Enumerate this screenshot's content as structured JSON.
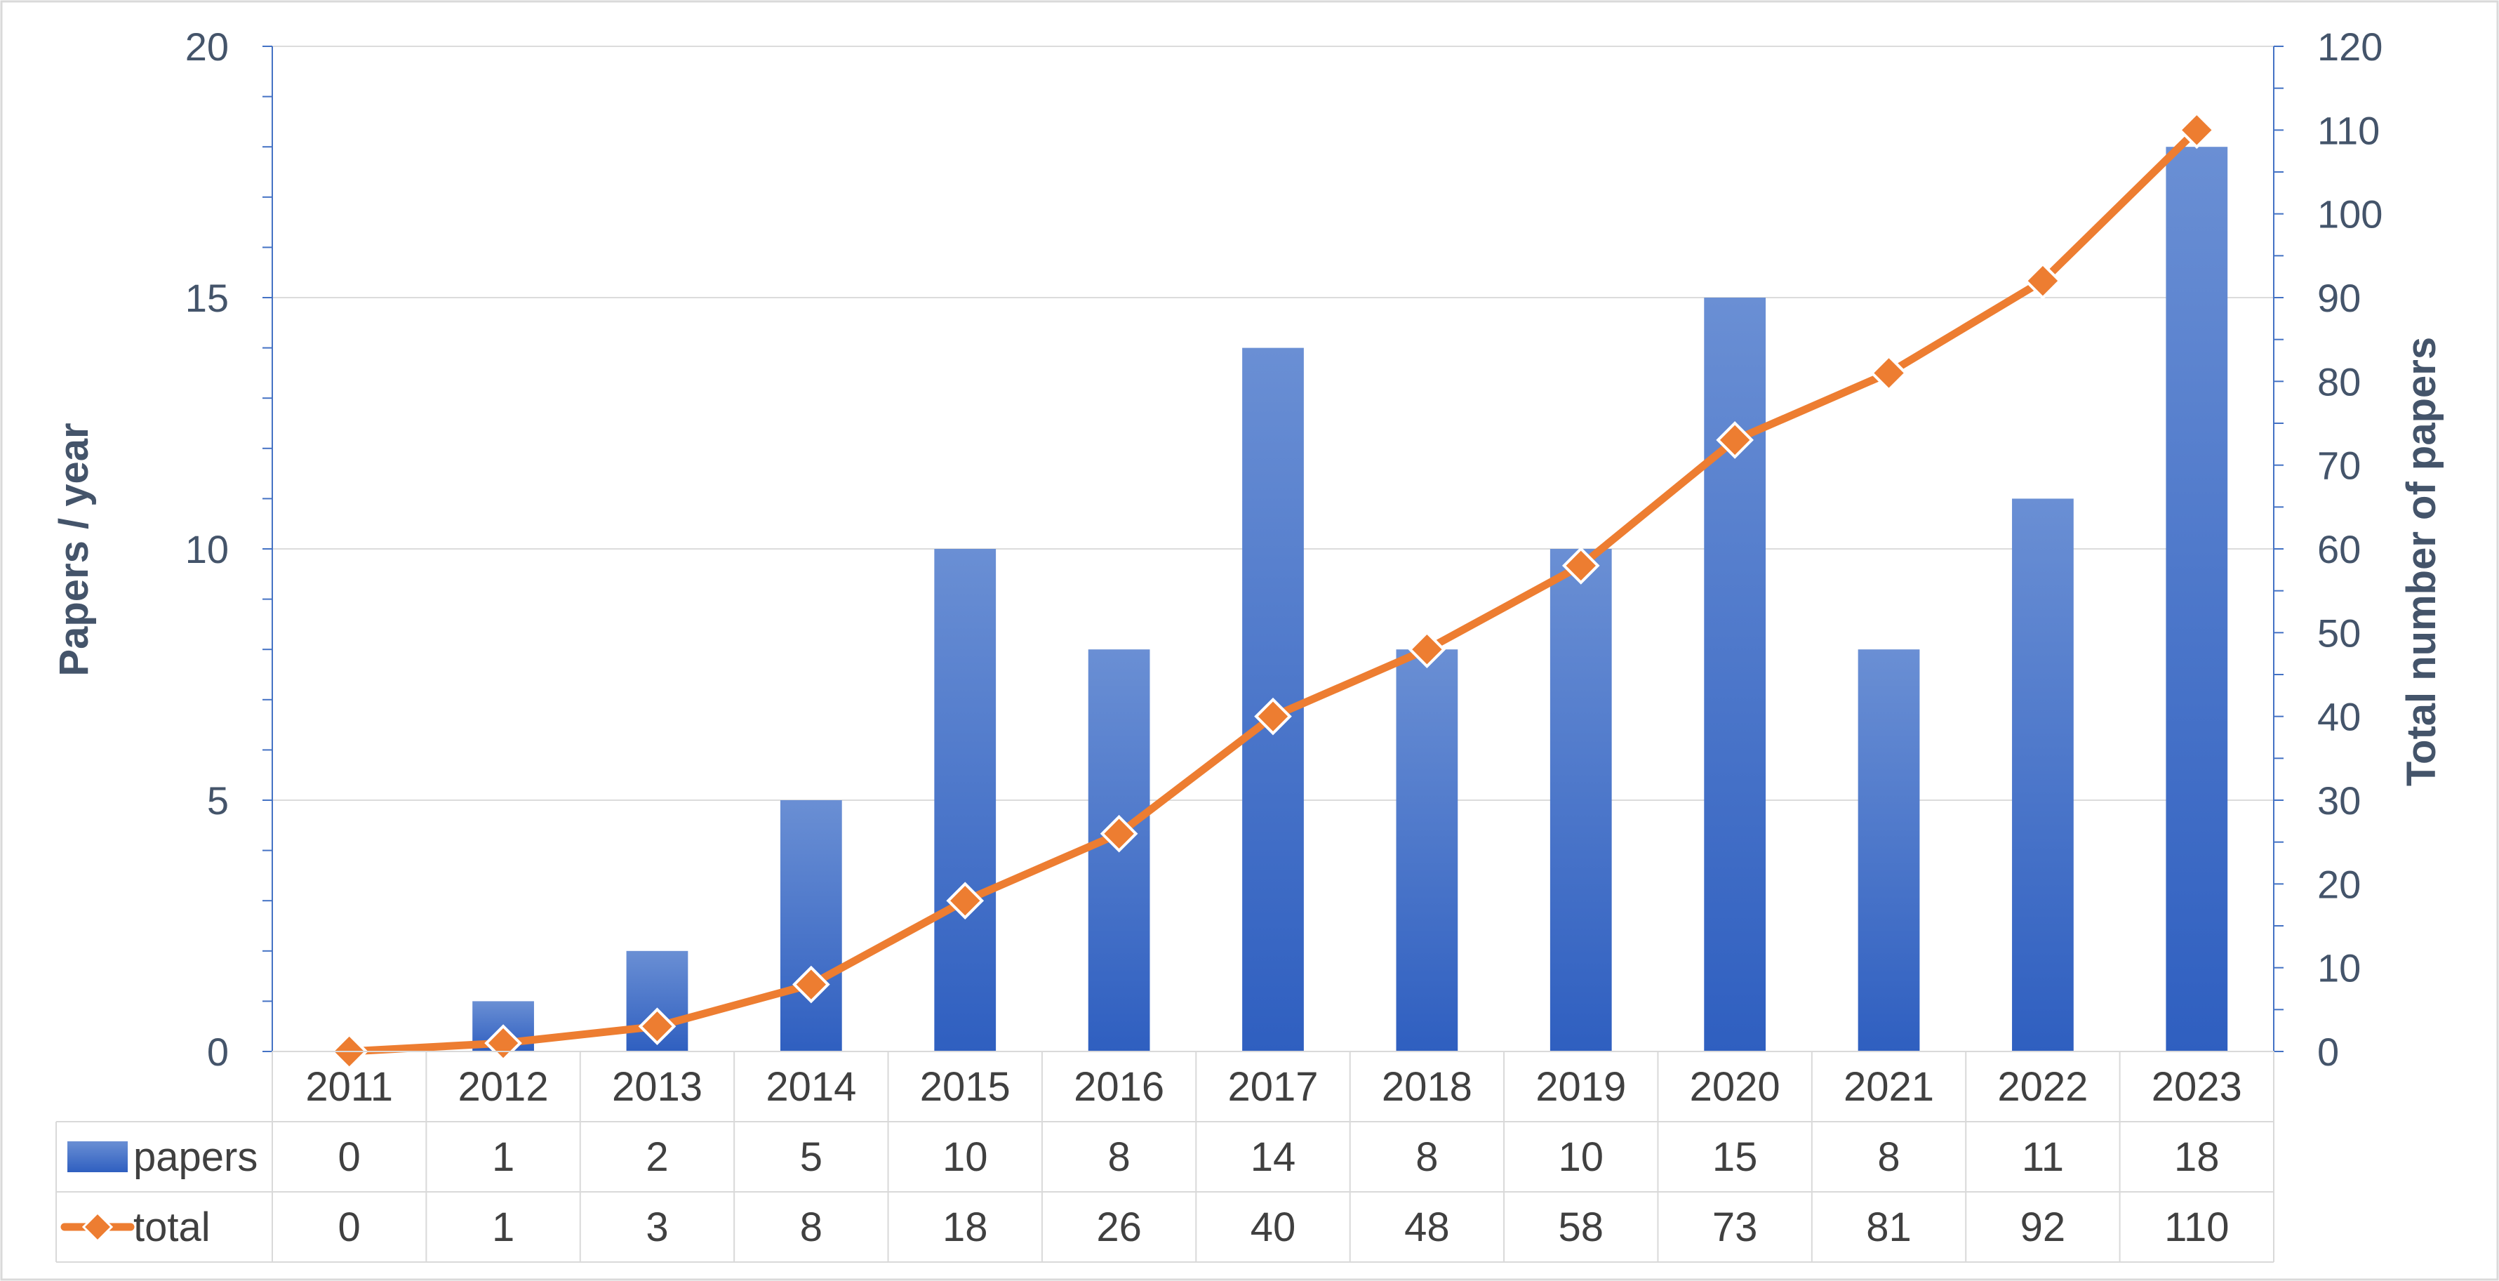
{
  "chart_data": {
    "type": "bar",
    "categories": [
      "2011",
      "2012",
      "2013",
      "2014",
      "2015",
      "2016",
      "2017",
      "2018",
      "2019",
      "2020",
      "2021",
      "2022",
      "2023"
    ],
    "series": [
      {
        "name": "papers",
        "type": "bar",
        "axis": "left",
        "values": [
          0,
          1,
          2,
          5,
          10,
          8,
          14,
          8,
          10,
          15,
          8,
          11,
          18
        ],
        "color": "#4472c4"
      },
      {
        "name": "total",
        "type": "line",
        "axis": "right",
        "values": [
          0,
          1,
          3,
          8,
          18,
          26,
          40,
          48,
          58,
          73,
          81,
          92,
          110
        ],
        "color": "#ed7d31"
      }
    ],
    "ylabel": "Papers / year",
    "y2label": "Total number of papers",
    "ylim": [
      0,
      20
    ],
    "y2lim": [
      0,
      120
    ],
    "yticks": [
      "0",
      "5",
      "10",
      "15",
      "20"
    ],
    "y2ticks": [
      "0",
      "10",
      "20",
      "30",
      "40",
      "50",
      "60",
      "70",
      "80",
      "90",
      "100",
      "110",
      "120"
    ],
    "grid": true,
    "legend": "data table with legend keys"
  }
}
